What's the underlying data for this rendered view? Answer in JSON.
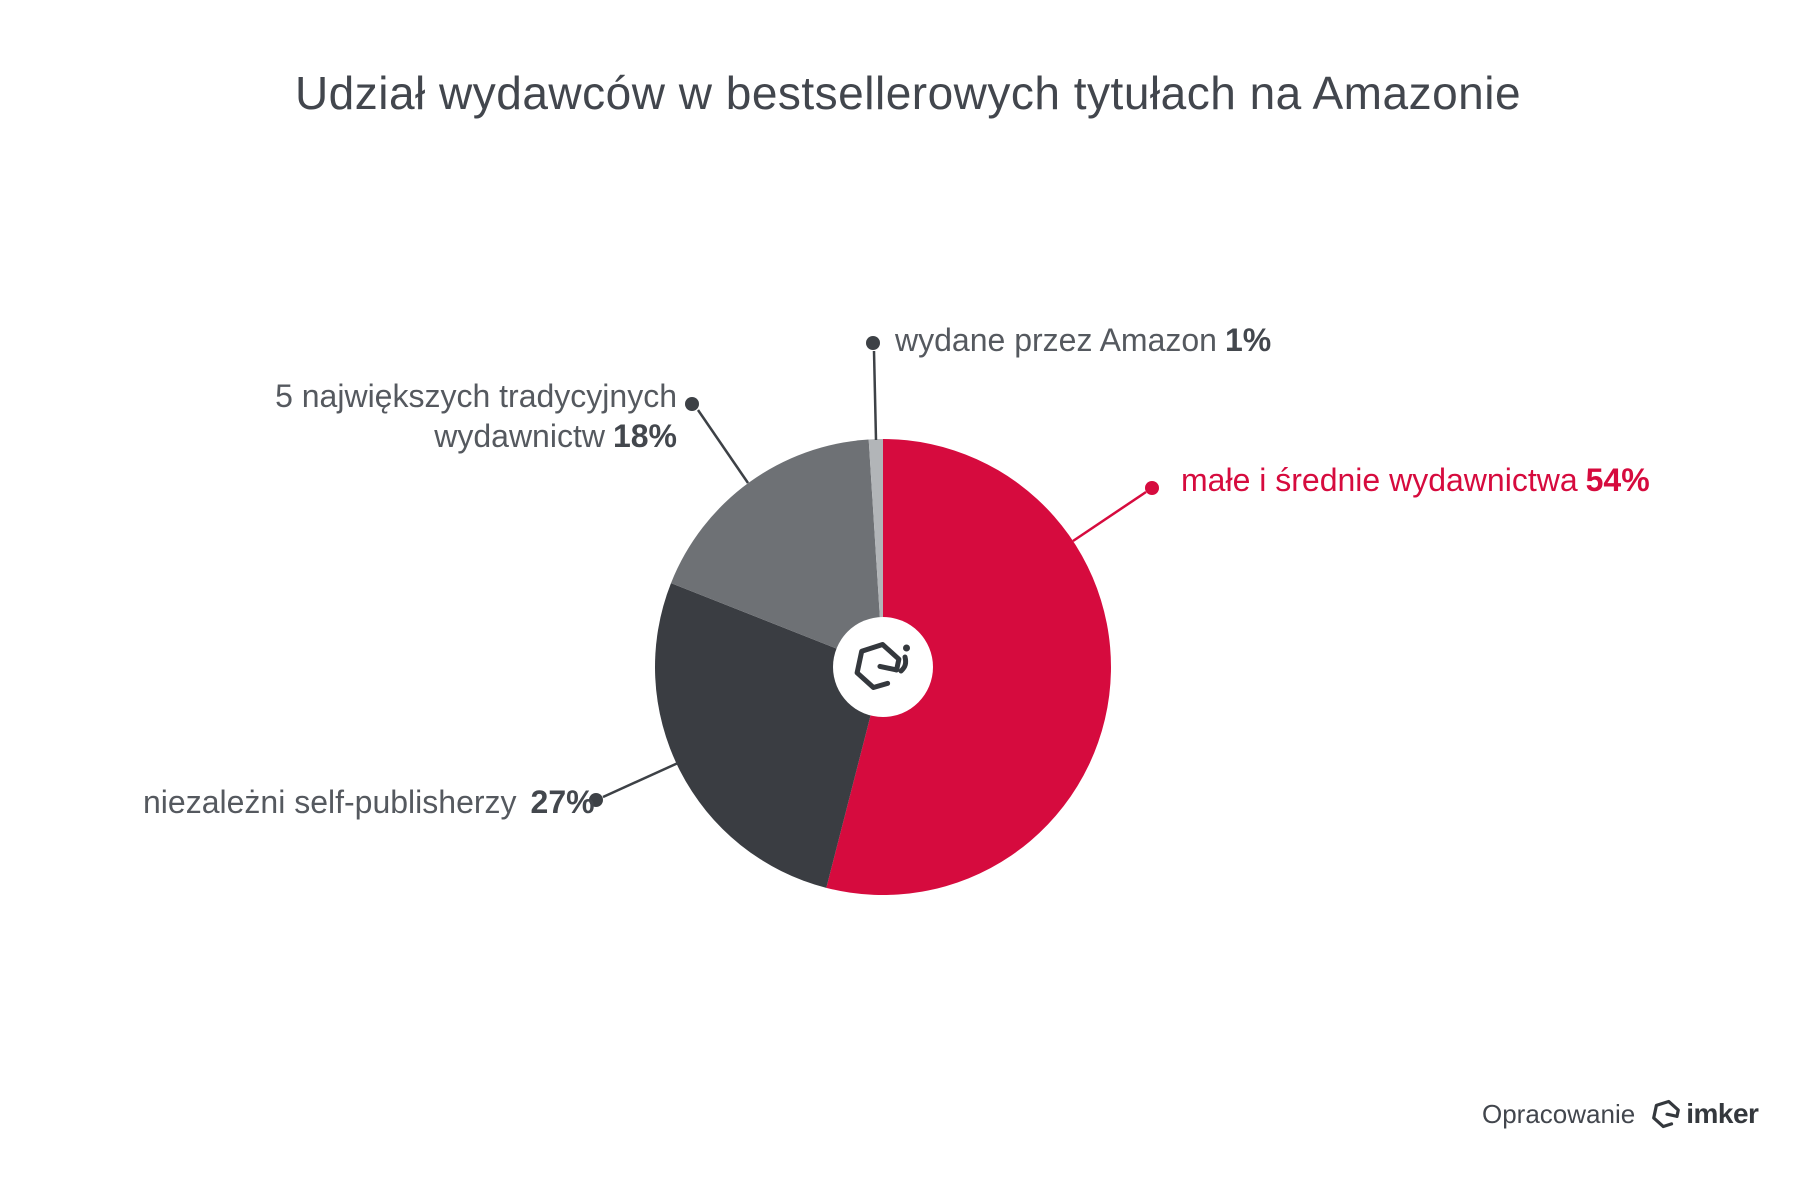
{
  "title": "Udział wydawców w bestsellerowych tytułach na Amazonie",
  "chart_data": {
    "type": "pie",
    "title": "Udział wydawców w bestsellerowych tytułach na Amazonie",
    "unit": "%",
    "start_angle_deg": 0,
    "direction": "clockwise",
    "donut": true,
    "legend": "callout-labels",
    "series": [
      {
        "name": "małe i średnie wydawnictwa",
        "value": 54,
        "color": "#d60b3e"
      },
      {
        "name": "niezależni self-publisherzy",
        "value": 27,
        "color": "#3a3d42"
      },
      {
        "name": "5 największych tradycyjnych wydawnictw",
        "value": 18,
        "color": "#6e7175"
      },
      {
        "name": "wydane przez Amazon",
        "value": 1,
        "color": "#b2b5b8"
      }
    ]
  },
  "labels": {
    "amazon": {
      "text": "wydane przez Amazon",
      "value": "1%"
    },
    "top5": {
      "line1": "5 największych tradycyjnych",
      "line2": "wydawnictw",
      "value": "18%"
    },
    "sme": {
      "text": "małe i średnie wydawnictwa",
      "value": "54%"
    },
    "selfpub": {
      "text": "niezależni self-publisherzy",
      "value": "27%"
    }
  },
  "footer": {
    "label": "Opracowanie",
    "brand": "imker"
  },
  "colors": {
    "accent": "#d60b3e",
    "leader": "#3d4146",
    "title_text": "#42464d",
    "label_text": "#55595f",
    "value_text": "#43474d",
    "logo": "#34383d",
    "background": "#ffffff"
  }
}
